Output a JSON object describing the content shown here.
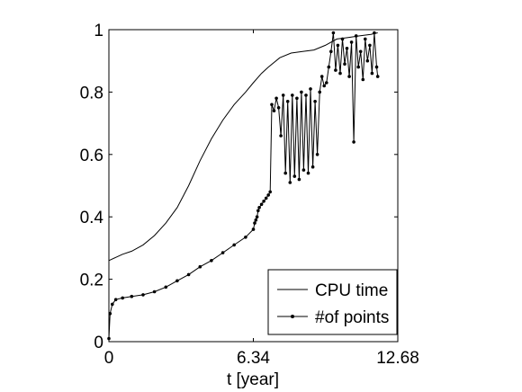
{
  "chart_data": {
    "type": "line",
    "title": "",
    "xlabel": "t [year]",
    "ylabel": "",
    "xlim": [
      0,
      12.68
    ],
    "ylim": [
      0,
      1
    ],
    "x_ticks": [
      "0",
      "6.34",
      "12.68"
    ],
    "y_ticks": [
      "0",
      "0.2",
      "0.4",
      "0.6",
      "0.8",
      "1"
    ],
    "grid": false,
    "legend_position": "bottom-right",
    "series": [
      {
        "name": "CPU time",
        "marker": "none",
        "x": [
          0,
          0.3,
          0.6,
          1.0,
          1.5,
          2.0,
          2.5,
          3.0,
          3.5,
          4.0,
          4.5,
          5.0,
          5.5,
          6.0,
          6.34,
          6.7,
          7.0,
          7.5,
          8.0,
          8.5,
          9.0,
          9.5,
          10.0,
          10.5,
          11.0,
          11.5,
          11.8
        ],
        "y": [
          0.26,
          0.27,
          0.28,
          0.29,
          0.31,
          0.34,
          0.38,
          0.43,
          0.5,
          0.58,
          0.65,
          0.71,
          0.76,
          0.8,
          0.83,
          0.86,
          0.88,
          0.91,
          0.925,
          0.93,
          0.935,
          0.95,
          0.97,
          0.975,
          0.98,
          0.985,
          0.99
        ]
      },
      {
        "name": "#of points",
        "marker": "dot",
        "x": [
          0,
          0.05,
          0.15,
          0.3,
          0.6,
          1.0,
          1.5,
          2.0,
          2.5,
          3.0,
          3.5,
          4.0,
          4.5,
          5.0,
          5.5,
          6.0,
          6.34,
          6.4,
          6.45,
          6.5,
          6.55,
          6.6,
          6.7,
          6.8,
          6.9,
          7.0,
          7.08,
          7.15,
          7.25,
          7.35,
          7.45,
          7.55,
          7.65,
          7.75,
          7.85,
          7.95,
          8.05,
          8.15,
          8.25,
          8.35,
          8.45,
          8.55,
          8.65,
          8.75,
          8.85,
          8.95,
          9.05,
          9.15,
          9.25,
          9.35,
          9.45,
          9.55,
          9.65,
          9.75,
          9.85,
          9.95,
          10.05,
          10.15,
          10.25,
          10.35,
          10.45,
          10.55,
          10.65,
          10.75,
          10.85,
          10.95,
          11.05,
          11.15,
          11.25,
          11.35,
          11.45,
          11.55,
          11.65,
          11.75,
          11.8
        ],
        "y": [
          0.01,
          0.09,
          0.12,
          0.135,
          0.14,
          0.145,
          0.15,
          0.16,
          0.175,
          0.195,
          0.215,
          0.24,
          0.26,
          0.285,
          0.31,
          0.335,
          0.36,
          0.38,
          0.39,
          0.4,
          0.42,
          0.43,
          0.44,
          0.45,
          0.46,
          0.47,
          0.48,
          0.76,
          0.74,
          0.78,
          0.75,
          0.66,
          0.79,
          0.54,
          0.77,
          0.51,
          0.79,
          0.53,
          0.78,
          0.52,
          0.8,
          0.55,
          0.79,
          0.54,
          0.81,
          0.56,
          0.77,
          0.6,
          0.8,
          0.85,
          0.82,
          0.83,
          0.88,
          0.93,
          0.99,
          0.87,
          0.95,
          0.86,
          0.97,
          0.89,
          0.94,
          0.85,
          0.96,
          0.64,
          0.98,
          0.88,
          0.93,
          0.84,
          0.97,
          0.9,
          0.95,
          0.86,
          0.99,
          0.88,
          0.85
        ]
      }
    ]
  }
}
